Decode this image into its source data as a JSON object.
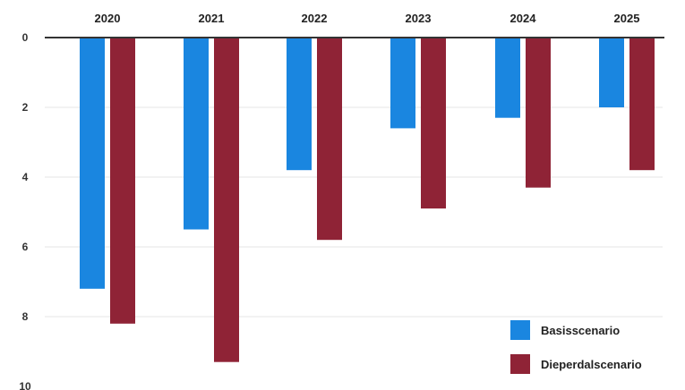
{
  "chart_data": {
    "type": "bar",
    "orientation": "vertical-downward",
    "categories": [
      "2020",
      "2021",
      "2022",
      "2023",
      "2024",
      "2025"
    ],
    "series": [
      {
        "name": "Basisscenario",
        "color": "#1a86e0",
        "values": [
          7.2,
          5.5,
          3.8,
          2.6,
          2.3,
          2.0
        ]
      },
      {
        "name": "Dieperdalscenario",
        "color": "#8f2336",
        "values": [
          8.2,
          9.3,
          5.8,
          4.9,
          4.3,
          3.8
        ]
      }
    ],
    "y_ticks": [
      "0",
      "2",
      "4",
      "6",
      "8",
      "10"
    ],
    "ylim": [
      0,
      10
    ],
    "y_inverted": true,
    "category_labels_position": "top",
    "grid": true,
    "legend_position": "bottom-right"
  }
}
